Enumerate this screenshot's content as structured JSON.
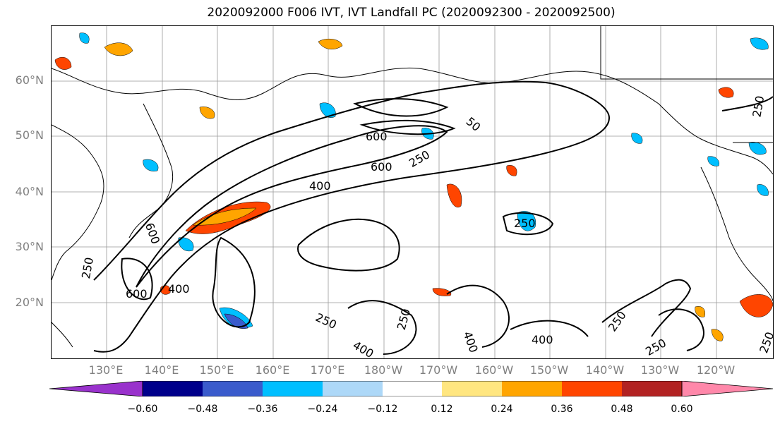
{
  "title": "2020092000 F006 IVT, IVT Landfall PC (2020092300 - 2020092500)",
  "lat_labels": [
    "60°N",
    "50°N",
    "40°N",
    "30°N",
    "20°N"
  ],
  "lon_labels": [
    "130°E",
    "140°E",
    "150°E",
    "160°E",
    "170°E",
    "180°W",
    "170°W",
    "160°W",
    "150°W",
    "140°W",
    "130°W",
    "120°W"
  ],
  "contour_labels": [
    "250",
    "400",
    "600",
    "600",
    "600",
    "400",
    "250",
    "600",
    "400",
    "250",
    "250",
    "400",
    "400",
    "250",
    "250",
    "250",
    "250",
    "250",
    "50"
  ],
  "colorbar": {
    "colors": [
      "#9932cc",
      "#00008b",
      "#3a5bcc",
      "#00bfff",
      "#add8f8",
      "#ffffff",
      "#ffe680",
      "#ffa500",
      "#ff4500",
      "#b22222",
      "#ff88aa"
    ],
    "tick_labels": [
      "−0.60",
      "−0.48",
      "−0.36",
      "−0.24",
      "−0.12",
      "0.12",
      "0.24",
      "0.36",
      "0.48",
      "0.60"
    ]
  },
  "colors": {
    "grid": "#999999",
    "contour": "#000000",
    "label_gray": "#808080"
  }
}
